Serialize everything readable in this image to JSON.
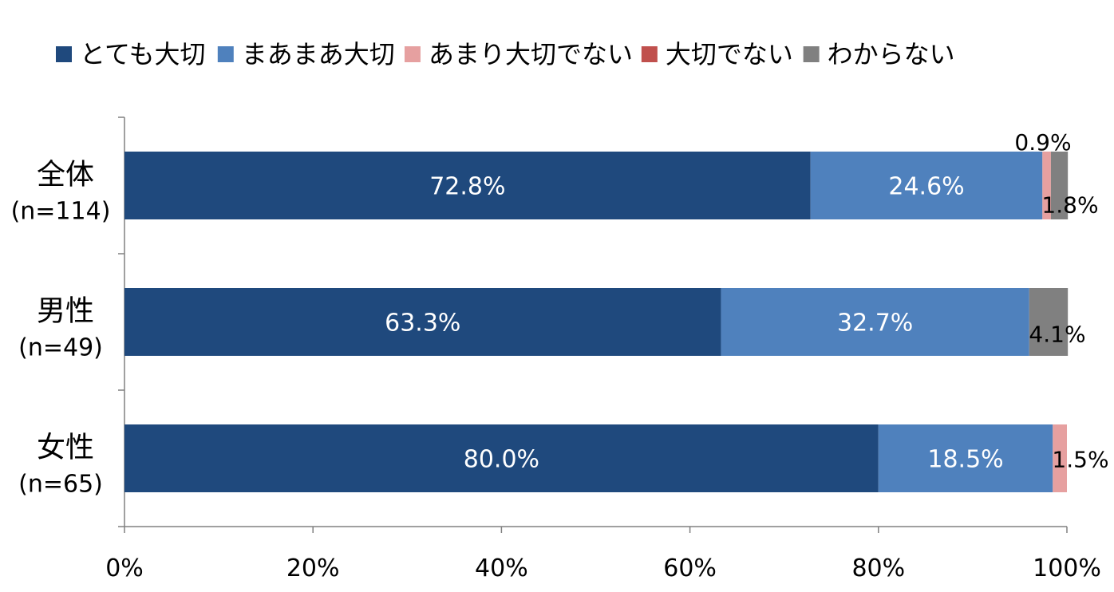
{
  "chart_data": {
    "type": "bar",
    "orientation": "horizontal",
    "stacked": true,
    "categories": [
      {
        "label": "全体",
        "n": "(n=114)"
      },
      {
        "label": "男性",
        "n": "(n=49)"
      },
      {
        "label": "女性",
        "n": "(n=65)"
      }
    ],
    "series": [
      {
        "name": "とても大切",
        "color": "#1F497D",
        "values": [
          72.8,
          63.3,
          80.0
        ],
        "labels": [
          "72.8%",
          "63.3%",
          "80.0%"
        ]
      },
      {
        "name": "まあまあ大切",
        "color": "#4F81BD",
        "values": [
          24.6,
          32.7,
          18.5
        ],
        "labels": [
          "24.6%",
          "32.7%",
          "18.5%"
        ]
      },
      {
        "name": "あまり大切でない",
        "color": "#E6A0A0",
        "values": [
          0.9,
          0.0,
          1.5
        ],
        "labels": [
          "0.9%",
          "",
          "1.5%"
        ]
      },
      {
        "name": "大切でない",
        "color": "#C0504D",
        "values": [
          0.0,
          0.0,
          0.0
        ],
        "labels": [
          "",
          "",
          ""
        ]
      },
      {
        "name": "わからない",
        "color": "#808080",
        "values": [
          1.8,
          4.1,
          0.0
        ],
        "labels": [
          "1.8%",
          "4.1%",
          ""
        ]
      }
    ],
    "xlim": [
      0,
      100
    ],
    "xticks": [
      "0%",
      "20%",
      "40%",
      "60%",
      "80%",
      "100%"
    ],
    "legend_position": "top",
    "grid": false
  }
}
